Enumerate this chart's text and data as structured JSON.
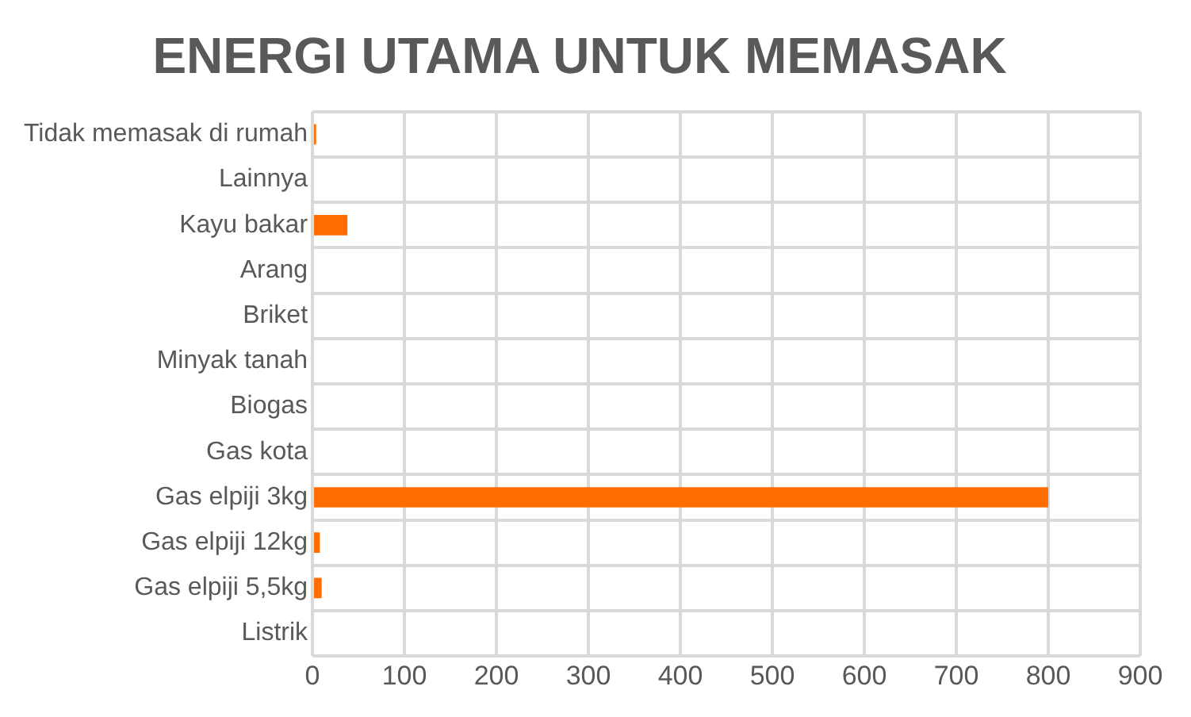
{
  "chart_data": {
    "type": "bar",
    "orientation": "horizontal",
    "title": "ENERGI UTAMA UNTUK MEMASAK",
    "categories": [
      "Tidak memasak di rumah",
      "Lainnya",
      "Kayu bakar",
      "Arang",
      "Briket",
      "Minyak tanah",
      "Biogas",
      "Gas kota",
      "Gas elpiji 3kg",
      "Gas elpiji 12kg",
      "Gas elpiji 5,5kg",
      "Listrik"
    ],
    "values": [
      4,
      0,
      38,
      0,
      0,
      0,
      0,
      0,
      800,
      8,
      10,
      0
    ],
    "color": "#ff6d00",
    "xlim": [
      0,
      900
    ],
    "xticks": [
      0,
      100,
      200,
      300,
      400,
      500,
      600,
      700,
      800,
      900
    ],
    "grid": true
  }
}
